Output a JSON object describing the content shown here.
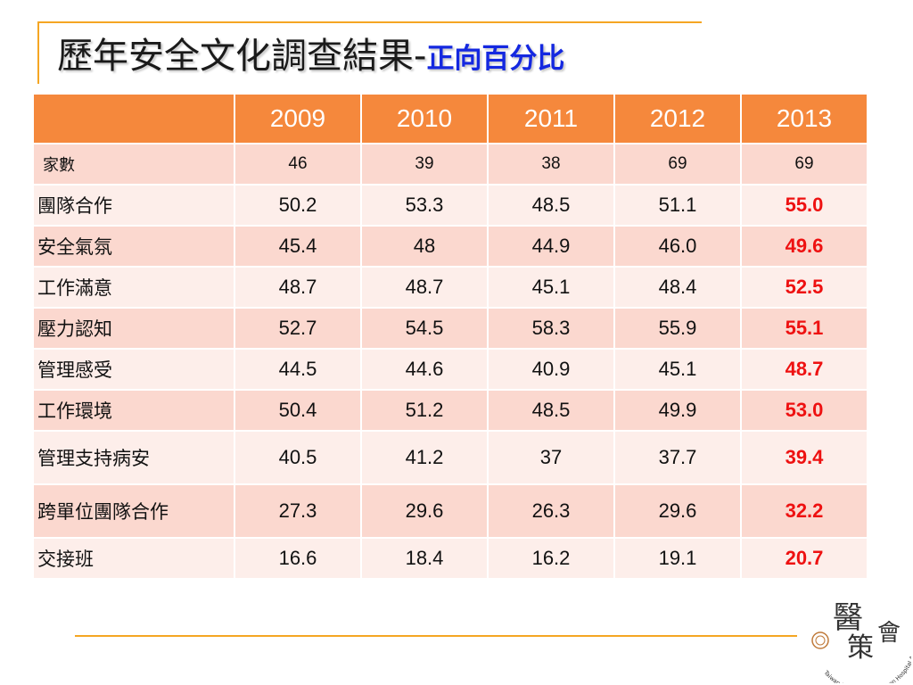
{
  "title": {
    "main": "歷年安全文化調查結果-",
    "sub": "正向百分比"
  },
  "table": {
    "years": [
      "2009",
      "2010",
      "2011",
      "2012",
      "2013"
    ],
    "rows": [
      {
        "label": "家數",
        "values": [
          "46",
          "39",
          "38",
          "69",
          "69"
        ]
      },
      {
        "label": "團隊合作",
        "values": [
          "50.2",
          "53.3",
          "48.5",
          "51.1",
          "55.0"
        ]
      },
      {
        "label": "安全氣氛",
        "values": [
          "45.4",
          "48",
          "44.9",
          "46.0",
          "49.6"
        ]
      },
      {
        "label": "工作滿意",
        "values": [
          "48.7",
          "48.7",
          "45.1",
          "48.4",
          "52.5"
        ]
      },
      {
        "label": "壓力認知",
        "values": [
          "52.7",
          "54.5",
          "58.3",
          "55.9",
          "55.1"
        ]
      },
      {
        "label": "管理感受",
        "values": [
          "44.5",
          "44.6",
          "40.9",
          "45.1",
          "48.7"
        ]
      },
      {
        "label": "工作環境",
        "values": [
          "50.4",
          "51.2",
          "48.5",
          "49.9",
          "53.0"
        ]
      },
      {
        "label": "管理支持病安",
        "values": [
          "40.5",
          "41.2",
          "37",
          "37.7",
          "39.4"
        ]
      },
      {
        "label": "跨單位團隊合作",
        "values": [
          "27.3",
          "29.6",
          "26.3",
          "29.6",
          "32.2"
        ]
      },
      {
        "label": "交接班",
        "values": [
          "16.6",
          "18.4",
          "16.2",
          "19.1",
          "20.7"
        ]
      }
    ]
  },
  "logo": {
    "seal_text": "醫策會",
    "ring_text": "Taiwan Joint Commission on Hospital Accreditation"
  },
  "colors": {
    "header": "#f5883c",
    "row_odd": "#fbd8cf",
    "row_even": "#fdeeea",
    "accent_rule": "#f5a623",
    "highlight": "#ee1111",
    "subtitle": "#1428e0"
  }
}
